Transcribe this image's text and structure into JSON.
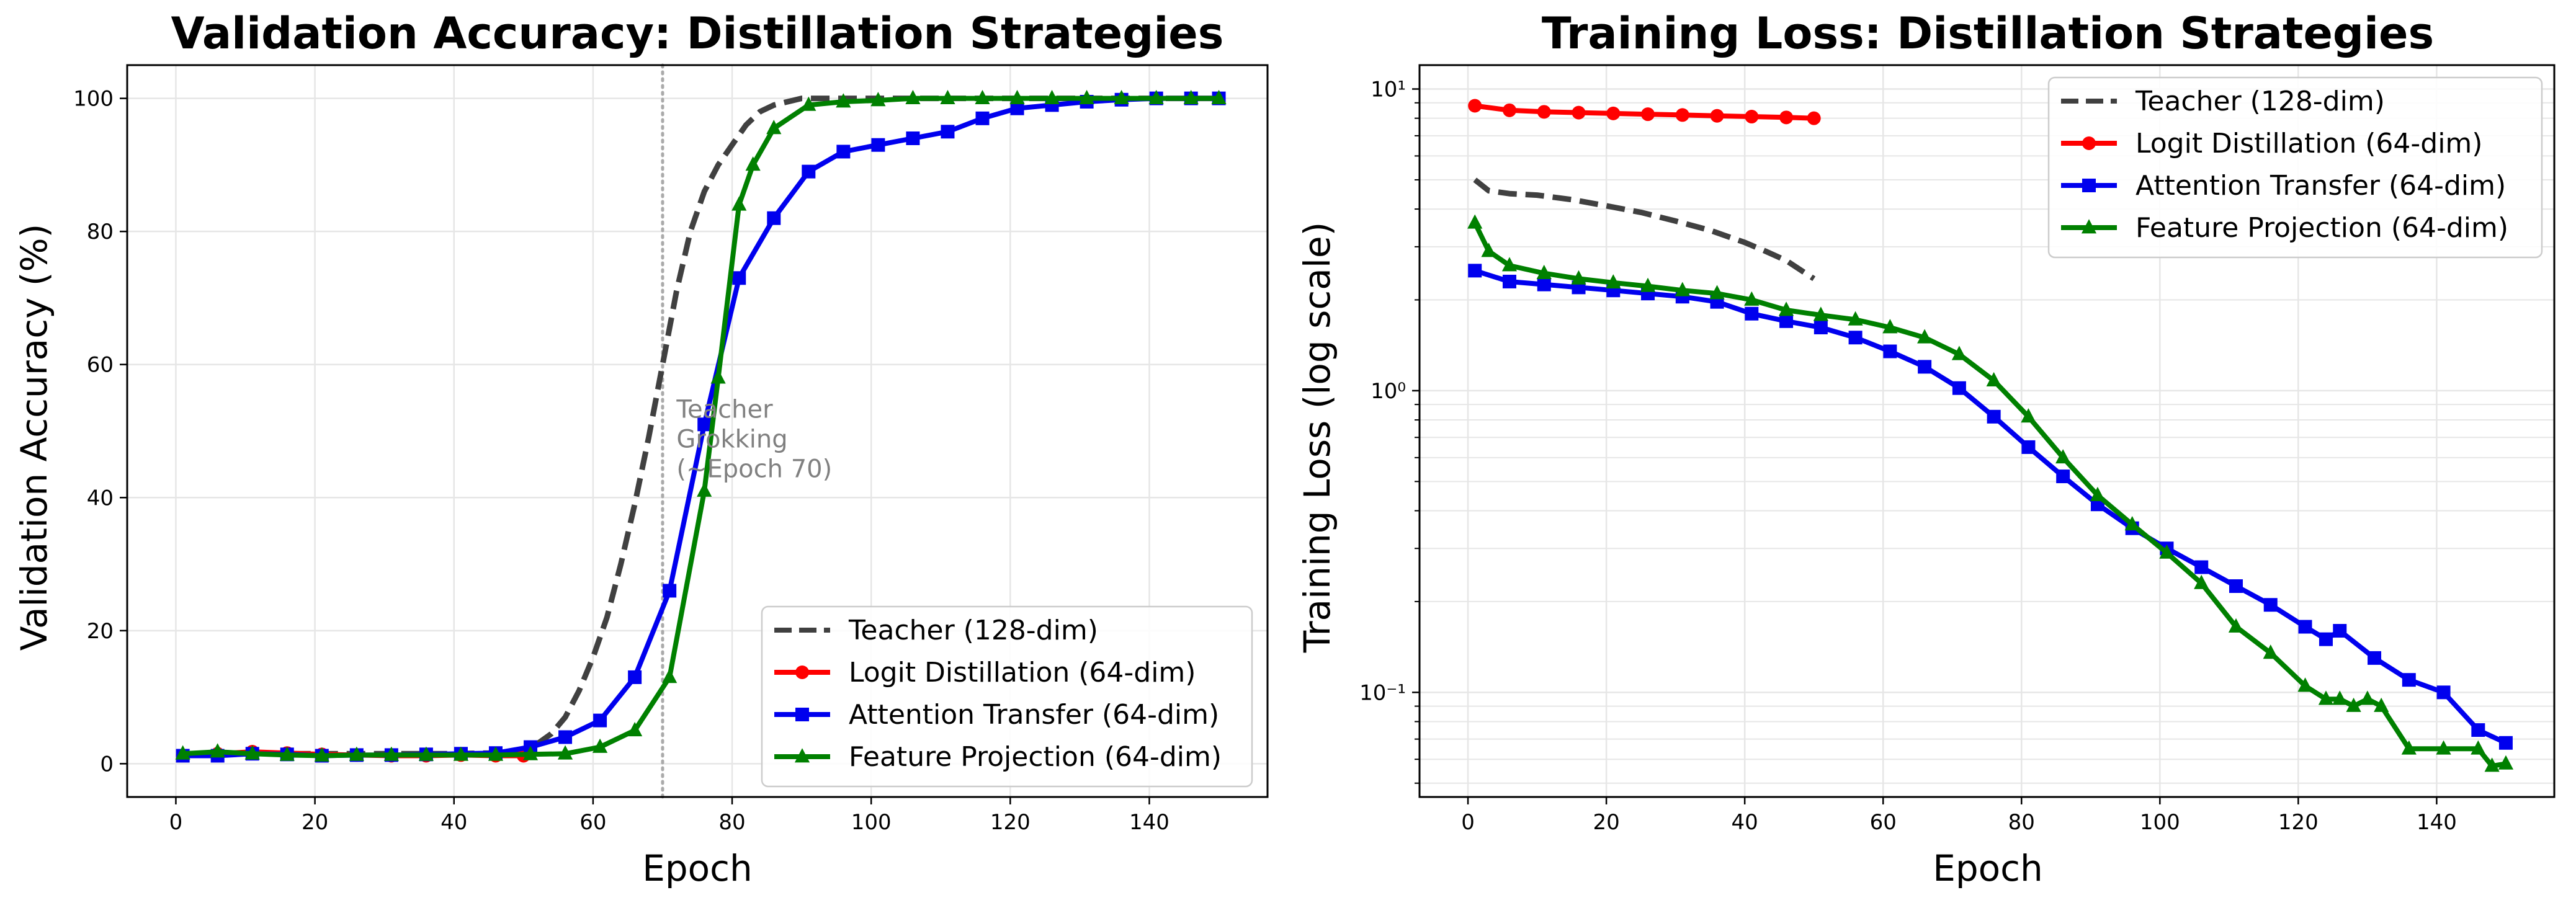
{
  "colors": {
    "teacher": "#404040",
    "logit": "#ff0000",
    "attention": "#0000ee",
    "feature": "#008000",
    "annotation": "#808080",
    "grid": "#e6e6e6",
    "axis": "#000000"
  },
  "chart_data": [
    {
      "type": "line",
      "title": "Validation Accuracy: Distillation Strategies",
      "xlabel": "Epoch",
      "ylabel": "Validation Accuracy (%)",
      "xlim": [
        -7,
        157
      ],
      "ylim": [
        -5,
        105
      ],
      "xticks": [
        0,
        20,
        40,
        60,
        80,
        100,
        120,
        140
      ],
      "yticks": [
        0,
        20,
        40,
        60,
        80,
        100
      ],
      "grid": true,
      "legend_position": "lower-right",
      "vline": {
        "x": 70,
        "style": "dotted"
      },
      "annotation": {
        "lines": [
          "Teacher",
          "Grokking",
          "(~Epoch 70)"
        ],
        "x": 72,
        "y": 52
      },
      "series": [
        {
          "name": "Teacher (128-dim)",
          "color_key": "teacher",
          "style": "dashed",
          "marker": "none",
          "x": [
            1,
            5,
            10,
            15,
            20,
            25,
            30,
            35,
            40,
            45,
            50,
            52,
            54,
            56,
            58,
            60,
            62,
            64,
            66,
            68,
            70,
            72,
            74,
            76,
            78,
            80,
            82,
            84,
            86,
            88,
            90,
            95,
            100,
            110,
            120,
            130,
            140,
            150
          ],
          "y": [
            1.5,
            1.5,
            1.5,
            1.5,
            1.5,
            1.5,
            1.5,
            1.5,
            1.5,
            1.6,
            2,
            3,
            4.5,
            7,
            11,
            16,
            22,
            30,
            39,
            49,
            60,
            71,
            80,
            86,
            90,
            93,
            96,
            98,
            99,
            99.5,
            100,
            100,
            100,
            100,
            100,
            100,
            100,
            100
          ]
        },
        {
          "name": "Logit Distillation (64-dim)",
          "color_key": "logit",
          "style": "solid",
          "marker": "circle",
          "x": [
            1,
            6,
            11,
            16,
            21,
            26,
            31,
            36,
            41,
            46,
            50
          ],
          "y": [
            1.2,
            1.5,
            1.8,
            1.6,
            1.4,
            1.3,
            1.2,
            1.2,
            1.3,
            1.2,
            1.2
          ]
        },
        {
          "name": "Attention Transfer (64-dim)",
          "color_key": "attention",
          "style": "solid",
          "marker": "square",
          "x": [
            1,
            6,
            11,
            16,
            21,
            26,
            31,
            36,
            41,
            46,
            51,
            56,
            61,
            66,
            71,
            76,
            81,
            86,
            91,
            96,
            101,
            106,
            111,
            116,
            121,
            126,
            131,
            136,
            141,
            146,
            150
          ],
          "y": [
            1.2,
            1.2,
            1.5,
            1.4,
            1.2,
            1.3,
            1.3,
            1.4,
            1.5,
            1.6,
            2.5,
            4,
            6.5,
            13,
            26,
            51,
            73,
            82,
            89,
            92,
            93,
            94,
            95,
            97,
            98.5,
            99,
            99.5,
            99.8,
            100,
            100,
            100
          ]
        },
        {
          "name": "Feature Projection (64-dim)",
          "color_key": "feature",
          "style": "solid",
          "marker": "triangle",
          "x": [
            1,
            6,
            11,
            16,
            21,
            26,
            31,
            36,
            41,
            46,
            51,
            56,
            61,
            66,
            71,
            76,
            78,
            81,
            83,
            86,
            91,
            96,
            101,
            106,
            111,
            116,
            121,
            126,
            131,
            136,
            141,
            146,
            150
          ],
          "y": [
            1.5,
            1.8,
            1.5,
            1.3,
            1.2,
            1.3,
            1.3,
            1.3,
            1.3,
            1.3,
            1.4,
            1.5,
            2.5,
            5,
            13,
            41,
            58,
            84,
            90,
            95.5,
            99,
            99.5,
            99.7,
            100,
            100,
            100,
            100,
            100,
            100,
            100,
            100,
            100,
            100
          ]
        }
      ]
    },
    {
      "type": "line",
      "title": "Training Loss: Distillation Strategies",
      "xlabel": "Epoch",
      "ylabel": "Training Loss (log scale)",
      "yscale": "log",
      "xlim": [
        -7,
        157
      ],
      "ylim": [
        0.045,
        12
      ],
      "xticks": [
        0,
        20,
        40,
        60,
        80,
        100,
        120,
        140
      ],
      "yticks": [
        0.1,
        1,
        10
      ],
      "ytick_labels": [
        "10⁻¹",
        "10⁰",
        "10¹"
      ],
      "grid": true,
      "legend_position": "upper-right",
      "series": [
        {
          "name": "Teacher (128-dim)",
          "color_key": "teacher",
          "style": "dashed",
          "marker": "none",
          "x": [
            1,
            3,
            6,
            10,
            15,
            20,
            25,
            30,
            35,
            40,
            43,
            46,
            50
          ],
          "y": [
            5,
            4.6,
            4.5,
            4.45,
            4.3,
            4.1,
            3.9,
            3.65,
            3.4,
            3.1,
            2.9,
            2.7,
            2.35
          ]
        },
        {
          "name": "Logit Distillation (64-dim)",
          "color_key": "logit",
          "style": "solid",
          "marker": "circle",
          "x": [
            1,
            6,
            11,
            16,
            21,
            26,
            31,
            36,
            41,
            46,
            50
          ],
          "y": [
            8.8,
            8.5,
            8.4,
            8.35,
            8.3,
            8.25,
            8.2,
            8.15,
            8.1,
            8.05,
            8
          ]
        },
        {
          "name": "Attention Transfer (64-dim)",
          "color_key": "attention",
          "style": "solid",
          "marker": "square",
          "x": [
            1,
            6,
            11,
            16,
            21,
            26,
            31,
            36,
            41,
            46,
            51,
            56,
            61,
            66,
            71,
            76,
            81,
            86,
            91,
            96,
            101,
            106,
            111,
            116,
            121,
            124,
            126,
            131,
            136,
            141,
            146,
            150
          ],
          "y": [
            2.5,
            2.3,
            2.25,
            2.2,
            2.15,
            2.1,
            2.05,
            1.97,
            1.8,
            1.7,
            1.62,
            1.5,
            1.35,
            1.2,
            1.02,
            0.82,
            0.65,
            0.52,
            0.42,
            0.35,
            0.3,
            0.26,
            0.225,
            0.195,
            0.165,
            0.15,
            0.16,
            0.13,
            0.11,
            0.1,
            0.075,
            0.068
          ]
        },
        {
          "name": "Feature Projection (64-dim)",
          "color_key": "feature",
          "style": "solid",
          "marker": "triangle",
          "x": [
            1,
            3,
            6,
            11,
            16,
            21,
            26,
            31,
            36,
            41,
            46,
            51,
            56,
            61,
            66,
            71,
            76,
            81,
            86,
            91,
            96,
            101,
            106,
            111,
            116,
            121,
            124,
            126,
            128,
            130,
            132,
            136,
            141,
            146,
            148,
            150
          ],
          "y": [
            3.6,
            2.9,
            2.6,
            2.45,
            2.35,
            2.28,
            2.22,
            2.15,
            2.1,
            2.0,
            1.85,
            1.78,
            1.72,
            1.62,
            1.5,
            1.32,
            1.08,
            0.82,
            0.6,
            0.45,
            0.36,
            0.29,
            0.23,
            0.165,
            0.135,
            0.105,
            0.095,
            0.095,
            0.09,
            0.095,
            0.09,
            0.065,
            0.065,
            0.065,
            0.057,
            0.058
          ]
        }
      ]
    }
  ]
}
